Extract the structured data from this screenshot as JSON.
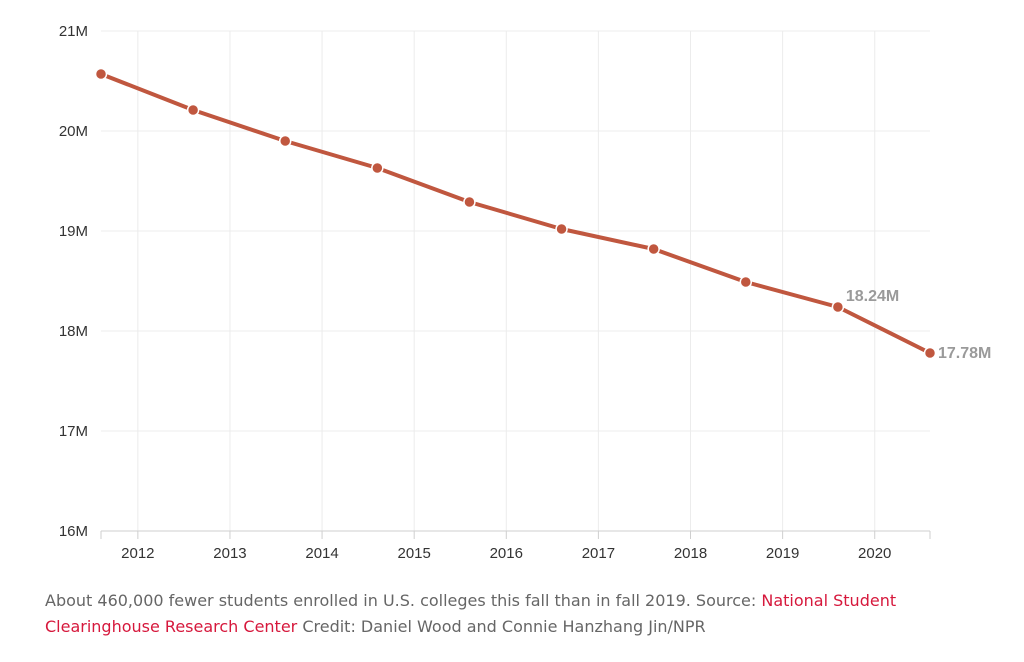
{
  "chart_data": {
    "type": "line",
    "title": "",
    "xlabel": "",
    "ylabel": "",
    "x": [
      2011.6,
      2012.6,
      2013.6,
      2014.6,
      2015.6,
      2016.6,
      2017.6,
      2018.6,
      2019.6,
      2020.6
    ],
    "series": [
      {
        "values": [
          20.57,
          20.21,
          19.9,
          19.63,
          19.29,
          19.02,
          18.82,
          18.49,
          18.24,
          17.78
        ],
        "color": "#c0573f"
      }
    ],
    "ylim": [
      16,
      21
    ],
    "xlim": [
      2011.6,
      2020.6
    ],
    "y_tick_labels": [
      "16M",
      "17M",
      "18M",
      "19M",
      "20M",
      "21M"
    ],
    "x_tick_labels": [
      "2012",
      "2013",
      "2014",
      "2015",
      "2016",
      "2017",
      "2018",
      "2019",
      "2020"
    ],
    "data_labels": [
      {
        "index": 8,
        "text": "18.24M"
      },
      {
        "index": 9,
        "text": "17.78M"
      }
    ],
    "grid": true,
    "legend": "none"
  },
  "caption": {
    "text_before": "About 460,000 fewer students enrolled in U.S. colleges this fall than in fall 2019. Source: ",
    "link_text": "National Student Clearinghouse Research Center",
    "text_after": " Credit: Daniel Wood and Connie Hanzhang Jin/NPR",
    "link_color": "#d6183c"
  }
}
